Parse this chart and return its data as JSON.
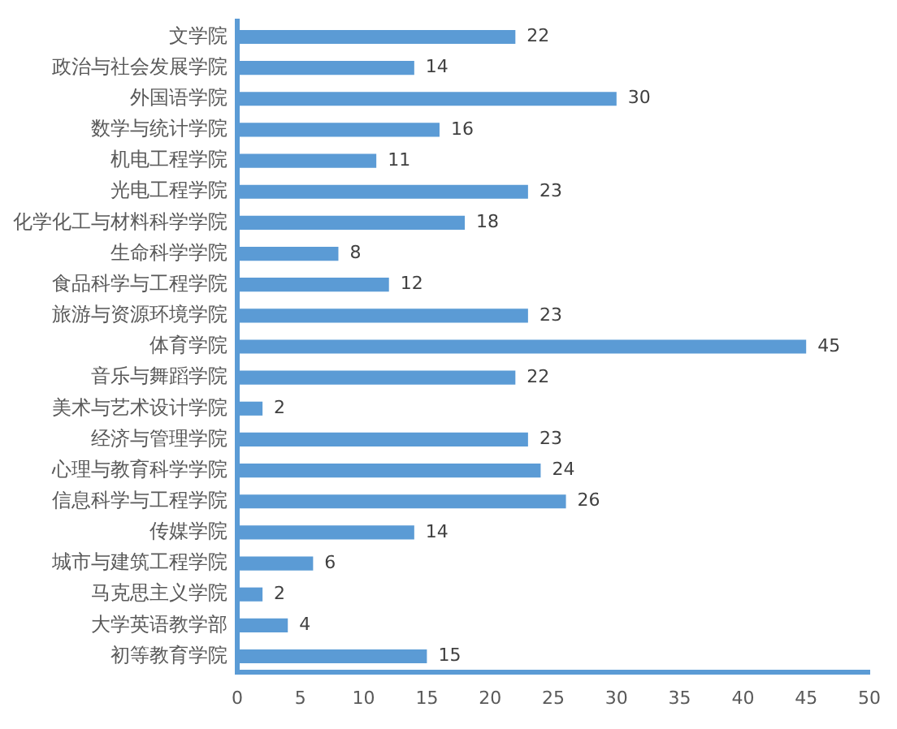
{
  "chart_data": {
    "type": "bar",
    "orientation": "horizontal",
    "categories": [
      "文学院",
      "政治与社会发展学院",
      "外国语学院",
      "数学与统计学院",
      "机电工程学院",
      "光电工程学院",
      "化学化工与材料科学学院",
      "生命科学学院",
      "食品科学与工程学院",
      "旅游与资源环境学院",
      "体育学院",
      "音乐与舞蹈学院",
      "美术与艺术设计学院",
      "经济与管理学院",
      "心理与教育科学学院",
      "信息科学与工程学院",
      "传媒学院",
      "城市与建筑工程学院",
      "马克思主义学院",
      "大学英语教学部",
      "初等教育学院"
    ],
    "values": [
      22,
      14,
      30,
      16,
      11,
      23,
      18,
      8,
      12,
      23,
      45,
      22,
      2,
      23,
      24,
      26,
      14,
      6,
      2,
      4,
      15
    ],
    "color": "#5b9bd5",
    "xlim": [
      0,
      50
    ],
    "xticks": [
      0,
      5,
      10,
      15,
      20,
      25,
      30,
      35,
      40,
      45,
      50
    ],
    "data_labels": true,
    "grid": false,
    "legend": false
  }
}
